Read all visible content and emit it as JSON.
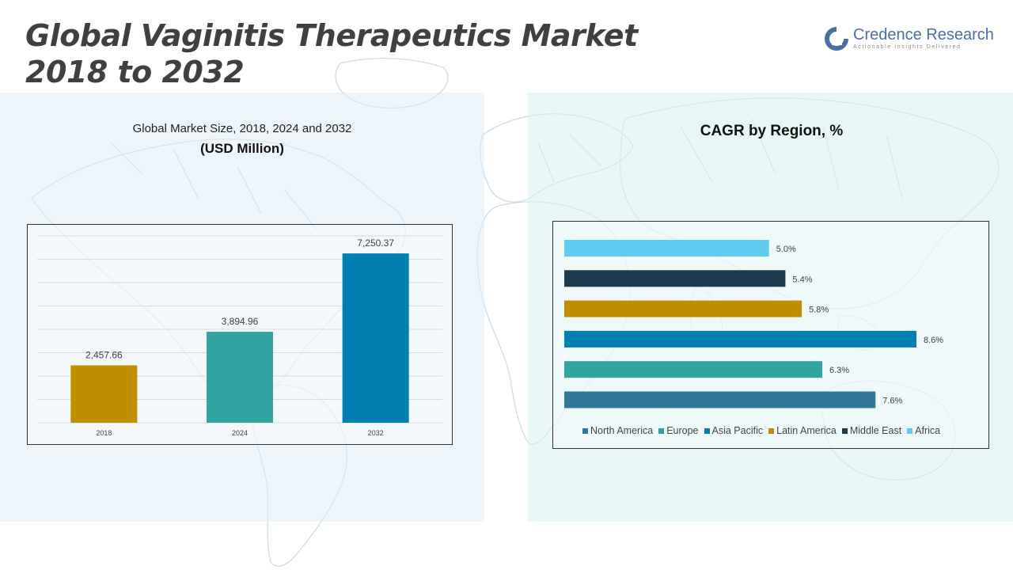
{
  "header": {
    "title_line1": "Global Vaginitis Therapeutics Market",
    "title_line2": "2018 to 2032"
  },
  "logo": {
    "name": "Credence Research",
    "tagline": "Actionable Insights Delivered"
  },
  "left_panel": {
    "title": "Global Market Size, 2018, 2024 and 2032",
    "subtitle": "(USD Million)"
  },
  "right_panel": {
    "title": "CAGR by Region, %"
  },
  "colors": {
    "gold": "#BF8F00",
    "teal": "#31A3A1",
    "blue": "#0080B0",
    "steel": "#31779A",
    "navy": "#1B3A4B",
    "sky": "#5FCBF0"
  },
  "chart_data": [
    {
      "type": "bar",
      "title": "Global Market Size, 2018, 2024 and 2032",
      "ylabel": "(USD Million)",
      "categories": [
        "2018",
        "2024",
        "2032"
      ],
      "values": [
        2457.66,
        3894.96,
        7250.37
      ],
      "value_labels": [
        "2,457.66",
        "3,894.96",
        "7,250.37"
      ],
      "colors": [
        "#BF8F00",
        "#31A3A1",
        "#0080B0"
      ],
      "ylim": [
        0,
        8000
      ],
      "grid": true
    },
    {
      "type": "bar",
      "orientation": "horizontal",
      "title": "CAGR by Region, %",
      "categories": [
        "North America",
        "Europe",
        "Asia Pacific",
        "Latin America",
        "Middle East",
        "Africa"
      ],
      "values": [
        7.6,
        6.3,
        8.6,
        5.8,
        5.4,
        5.0
      ],
      "value_labels": [
        "7.6%",
        "6.3%",
        "8.6%",
        "5.8%",
        "5.4%",
        "5.0%"
      ],
      "colors": [
        "#31779A",
        "#31A3A1",
        "#0080B0",
        "#BF8F00",
        "#1B3A4B",
        "#5FCBF0"
      ],
      "xlim": [
        0,
        9
      ],
      "legend_position": "bottom",
      "grid": false
    }
  ]
}
